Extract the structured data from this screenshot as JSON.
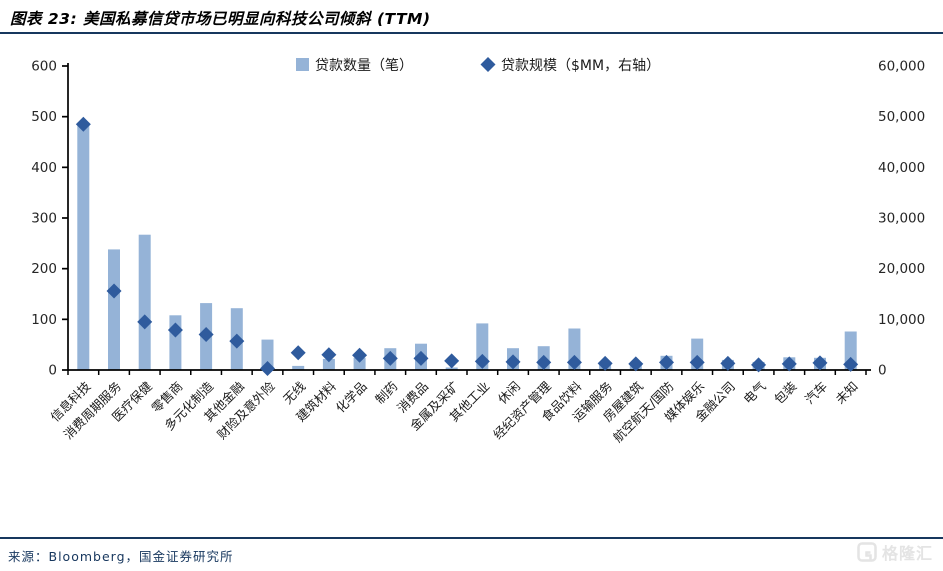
{
  "header": {
    "title": "图表 23: 美国私募信贷市场已明显向科技公司倾斜 (TTM)"
  },
  "footer": {
    "source": "来源：Bloomberg，国金证券研究所"
  },
  "watermark": {
    "icon": "gelonghui-logo",
    "text": "格隆汇"
  },
  "colors": {
    "bar": "#95B3D7",
    "diamond": "#2F5B9D",
    "accent_line": "#17375E",
    "axis": "#000000",
    "tick_label": "#262626",
    "category_label": "#1a1a1a",
    "legend_text": "#1a1a1a",
    "footer_text": "#17375E",
    "watermark": "#E4E4E4"
  },
  "chart_data": {
    "type": "bar",
    "title": "美国私募信贷市场已明显向科技公司倾斜 (TTM)",
    "grid": false,
    "legend_position": "top",
    "legend": [
      {
        "label": "贷款数量（笔）",
        "marker": "square",
        "color": "#95B3D7"
      },
      {
        "label": "贷款规模（$MM，右轴）",
        "marker": "diamond",
        "color": "#2F5B9D"
      }
    ],
    "categories": [
      "信息科技",
      "消费周期服务",
      "医疗保健",
      "零售商",
      "多元化制造",
      "其他金融",
      "财险及意外险",
      "无线",
      "建筑材料",
      "化学品",
      "制药",
      "消费品",
      "金属及采矿",
      "其他工业",
      "休闲",
      "经纪资产管理",
      "食品饮料",
      "运输服务",
      "房屋建筑",
      "航空航天/国防",
      "媒体娱乐",
      "金融公司",
      "电气",
      "包装",
      "汽车",
      "未知"
    ],
    "series": [
      {
        "name": "贷款数量（笔）",
        "type": "bar",
        "axis": "left",
        "values": [
          488,
          238,
          267,
          108,
          132,
          122,
          60,
          8,
          22,
          24,
          43,
          52,
          5,
          92,
          43,
          47,
          82,
          16,
          14,
          28,
          62,
          20,
          16,
          25,
          24,
          76
        ]
      },
      {
        "name": "贷款规模（$MM，右轴）",
        "type": "scatter",
        "marker": "diamond",
        "axis": "right",
        "values": [
          48500,
          15600,
          9500,
          7900,
          7000,
          5700,
          300,
          3400,
          3000,
          2900,
          2300,
          2300,
          1800,
          1700,
          1600,
          1500,
          1500,
          1300,
          1200,
          1500,
          1500,
          1300,
          1000,
          1200,
          1400,
          1100
        ]
      }
    ],
    "left_axis": {
      "min": 0,
      "max": 600,
      "tick_values": [
        0,
        100,
        200,
        300,
        400,
        500,
        600
      ],
      "tick_labels": [
        "0",
        "100",
        "200",
        "300",
        "400",
        "500",
        "600"
      ]
    },
    "right_axis": {
      "min": 0,
      "max": 60000,
      "tick_values": [
        0,
        10000,
        20000,
        30000,
        40000,
        50000,
        60000
      ],
      "tick_labels": [
        "0",
        "10,000",
        "20,000",
        "30,000",
        "40,000",
        "50,000",
        "60,000"
      ]
    }
  }
}
